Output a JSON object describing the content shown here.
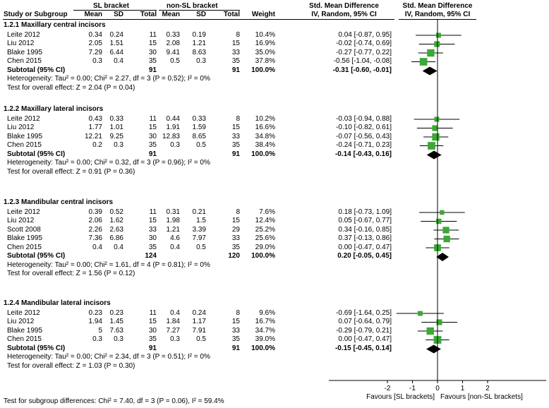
{
  "header": {
    "group1": "SL bracket",
    "group2": "non-SL bracket",
    "effect_title": "Std. Mean Difference",
    "effect_sub": "IV, Random, 95% CI",
    "plot_title": "Std. Mean Difference",
    "plot_sub": "IV, Random, 95% CI",
    "cols": {
      "study": "Study or Subgroup",
      "mean1": "Mean",
      "sd1": "SD",
      "total1": "Total",
      "mean2": "Mean",
      "sd2": "SD",
      "total2": "Total",
      "weight": "Weight"
    }
  },
  "chart_data": {
    "type": "forest",
    "xlim": [
      -3,
      3
    ],
    "ticks": [
      {
        "v": -2,
        "label": "-2"
      },
      {
        "v": -1,
        "label": "-1"
      },
      {
        "v": 0,
        "label": "0"
      },
      {
        "v": 1,
        "label": "1"
      },
      {
        "v": 2,
        "label": "2"
      }
    ],
    "favours_left": "Favours [SL brackets]",
    "favours_right": "Favours [non-SL brackets]",
    "groups": [
      {
        "title": "1.2.1 Maxillary central incisors",
        "studies": [
          {
            "study": "Leite 2012",
            "mean1": "0.34",
            "sd1": "0.24",
            "n1": "11",
            "mean2": "0.33",
            "sd2": "0.19",
            "n2": "8",
            "weight": "10.4%",
            "ci_text": "0.04 [-0.87, 0.95]",
            "est": 0.04,
            "lo": -0.87,
            "hi": 0.95,
            "w": 10.4
          },
          {
            "study": "Liu 2012",
            "mean1": "2.05",
            "sd1": "1.51",
            "n1": "15",
            "mean2": "2.08",
            "sd2": "1.21",
            "n2": "15",
            "weight": "16.9%",
            "ci_text": "-0.02 [-0.74, 0.69]",
            "est": -0.02,
            "lo": -0.74,
            "hi": 0.69,
            "w": 16.9
          },
          {
            "study": "Blake 1995",
            "mean1": "7.29",
            "sd1": "6.44",
            "n1": "30",
            "mean2": "9.41",
            "sd2": "8.63",
            "n2": "33",
            "weight": "35.0%",
            "ci_text": "-0.27 [-0.77, 0.22]",
            "est": -0.27,
            "lo": -0.77,
            "hi": 0.22,
            "w": 35.0
          },
          {
            "study": "Chen 2015",
            "mean1": "0.3",
            "sd1": "0.4",
            "n1": "35",
            "mean2": "0.5",
            "sd2": "0.3",
            "n2": "35",
            "weight": "37.8%",
            "ci_text": "-0.56 [-1.04, -0.08]",
            "est": -0.56,
            "lo": -1.04,
            "hi": -0.08,
            "w": 37.8
          }
        ],
        "subtotal": {
          "label": "Subtotal (95% CI)",
          "n1": "91",
          "n2": "91",
          "weight": "100.0%",
          "ci_text": "-0.31 [-0.60, -0.01]",
          "est": -0.31,
          "lo": -0.6,
          "hi": -0.01
        },
        "heterogeneity": "Heterogeneity: Tau² = 0.00; Chi² = 2.27, df = 3 (P = 0.52); I² = 0%",
        "overall": "Test for overall effect: Z = 2.04 (P = 0.04)"
      },
      {
        "title": "1.2.2 Maxillary lateral incisors",
        "studies": [
          {
            "study": "Leite 2012",
            "mean1": "0.43",
            "sd1": "0.33",
            "n1": "11",
            "mean2": "0.44",
            "sd2": "0.33",
            "n2": "8",
            "weight": "10.2%",
            "ci_text": "-0.03 [-0.94, 0.88]",
            "est": -0.03,
            "lo": -0.94,
            "hi": 0.88,
            "w": 10.2
          },
          {
            "study": "Liu 2012",
            "mean1": "1.77",
            "sd1": "1.01",
            "n1": "15",
            "mean2": "1.91",
            "sd2": "1.59",
            "n2": "15",
            "weight": "16.6%",
            "ci_text": "-0.10 [-0.82, 0.61]",
            "est": -0.1,
            "lo": -0.82,
            "hi": 0.61,
            "w": 16.6
          },
          {
            "study": "Blake 1995",
            "mean1": "12.21",
            "sd1": "9.25",
            "n1": "30",
            "mean2": "12.83",
            "sd2": "8.65",
            "n2": "33",
            "weight": "34.8%",
            "ci_text": "-0.07 [-0.56, 0.43]",
            "est": -0.07,
            "lo": -0.56,
            "hi": 0.43,
            "w": 34.8
          },
          {
            "study": "Chen 2015",
            "mean1": "0.2",
            "sd1": "0.3",
            "n1": "35",
            "mean2": "0.3",
            "sd2": "0.5",
            "n2": "35",
            "weight": "38.4%",
            "ci_text": "-0.24 [-0.71, 0.23]",
            "est": -0.24,
            "lo": -0.71,
            "hi": 0.23,
            "w": 38.4
          }
        ],
        "subtotal": {
          "label": "Subtotal (95% CI)",
          "n1": "91",
          "n2": "91",
          "weight": "100.0%",
          "ci_text": "-0.14 [-0.43, 0.16]",
          "est": -0.14,
          "lo": -0.43,
          "hi": 0.16
        },
        "heterogeneity": "Heterogeneity: Tau² = 0.00; Chi² = 0.32, df = 3 (P = 0.96); I² = 0%",
        "overall": "Test for overall effect: Z = 0.91 (P = 0.36)"
      },
      {
        "title": "1.2.3 Mandibular central incisors",
        "studies": [
          {
            "study": "Leite 2012",
            "mean1": "0.39",
            "sd1": "0.52",
            "n1": "11",
            "mean2": "0.31",
            "sd2": "0.21",
            "n2": "8",
            "weight": "7.6%",
            "ci_text": "0.18 [-0.73, 1.09]",
            "est": 0.18,
            "lo": -0.73,
            "hi": 1.09,
            "w": 7.6
          },
          {
            "study": "Liu 2012",
            "mean1": "2.06",
            "sd1": "1.62",
            "n1": "15",
            "mean2": "1.98",
            "sd2": "1.5",
            "n2": "15",
            "weight": "12.4%",
            "ci_text": "0.05 [-0.67, 0.77]",
            "est": 0.05,
            "lo": -0.67,
            "hi": 0.77,
            "w": 12.4
          },
          {
            "study": "Scott 2008",
            "mean1": "2.26",
            "sd1": "2.63",
            "n1": "33",
            "mean2": "1.21",
            "sd2": "3.39",
            "n2": "29",
            "weight": "25.2%",
            "ci_text": "0.34 [-0.16, 0.85]",
            "est": 0.34,
            "lo": -0.16,
            "hi": 0.85,
            "w": 25.2
          },
          {
            "study": "Blake 1995",
            "mean1": "7.36",
            "sd1": "6.86",
            "n1": "30",
            "mean2": "4.6",
            "sd2": "7.97",
            "n2": "33",
            "weight": "25.6%",
            "ci_text": "0.37 [-0.13, 0.86]",
            "est": 0.37,
            "lo": -0.13,
            "hi": 0.86,
            "w": 25.6
          },
          {
            "study": "Chen 2015",
            "mean1": "0.4",
            "sd1": "0.4",
            "n1": "35",
            "mean2": "0.4",
            "sd2": "0.5",
            "n2": "35",
            "weight": "29.0%",
            "ci_text": "0.00 [-0.47, 0.47]",
            "est": 0.0,
            "lo": -0.47,
            "hi": 0.47,
            "w": 29.0
          }
        ],
        "subtotal": {
          "label": "Subtotal (95% CI)",
          "n1": "124",
          "n2": "120",
          "weight": "100.0%",
          "ci_text": "0.20 [-0.05, 0.45]",
          "est": 0.2,
          "lo": -0.05,
          "hi": 0.45
        },
        "heterogeneity": "Heterogeneity: Tau² = 0.00; Chi² = 1.61, df = 4 (P = 0.81); I² = 0%",
        "overall": "Test for overall effect: Z = 1.56 (P = 0.12)"
      },
      {
        "title": "1.2.4 Mandibular lateral incisors",
        "studies": [
          {
            "study": "Leite 2012",
            "mean1": "0.23",
            "sd1": "0.23",
            "n1": "11",
            "mean2": "0.4",
            "sd2": "0.24",
            "n2": "8",
            "weight": "9.6%",
            "ci_text": "-0.69 [-1.64, 0.25]",
            "est": -0.69,
            "lo": -1.64,
            "hi": 0.25,
            "w": 9.6
          },
          {
            "study": "Liu 2012",
            "mean1": "1.94",
            "sd1": "1.45",
            "n1": "15",
            "mean2": "1.84",
            "sd2": "1.17",
            "n2": "15",
            "weight": "16.7%",
            "ci_text": "0.07 [-0.64, 0.79]",
            "est": 0.07,
            "lo": -0.64,
            "hi": 0.79,
            "w": 16.7
          },
          {
            "study": "Blake 1995",
            "mean1": "5",
            "sd1": "7.63",
            "n1": "30",
            "mean2": "7.27",
            "sd2": "7.91",
            "n2": "33",
            "weight": "34.7%",
            "ci_text": "-0.29 [-0.79, 0.21]",
            "est": -0.29,
            "lo": -0.79,
            "hi": 0.21,
            "w": 34.7
          },
          {
            "study": "Chen 2015",
            "mean1": "0.3",
            "sd1": "0.3",
            "n1": "35",
            "mean2": "0.3",
            "sd2": "0.5",
            "n2": "35",
            "weight": "39.0%",
            "ci_text": "0.00 [-0.47, 0.47]",
            "est": 0.0,
            "lo": -0.47,
            "hi": 0.47,
            "w": 39.0
          }
        ],
        "subtotal": {
          "label": "Subtotal (95% CI)",
          "n1": "91",
          "n2": "91",
          "weight": "100.0%",
          "ci_text": "-0.15 [-0.45, 0.14]",
          "est": -0.15,
          "lo": -0.45,
          "hi": 0.14
        },
        "heterogeneity": "Heterogeneity: Tau² = 0.00; Chi² = 2.34, df = 3 (P = 0.51); I² = 0%",
        "overall": "Test for overall effect: Z = 1.03 (P = 0.30)"
      }
    ],
    "subgroup_test": "Test for subgroup differences: Chi² = 7.40, df = 3 (P = 0.06), I² = 59.4%",
    "colors": {
      "square": "#3aa935",
      "diamond": "#000000",
      "lines": "#000000"
    }
  }
}
